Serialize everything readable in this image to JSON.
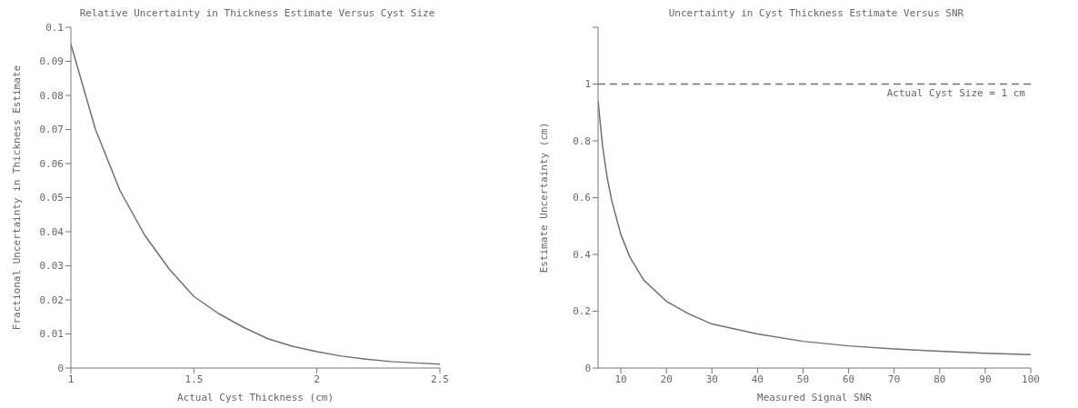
{
  "chart_data": [
    {
      "type": "line",
      "title": "Relative Uncertainty in Thickness Estimate Versus Cyst Size",
      "xlabel": "Actual Cyst Thickness (cm)",
      "ylabel": "Fractional Uncertainty in Thickness Estimate",
      "x": [
        1,
        1.1,
        1.2,
        1.3,
        1.4,
        1.5,
        1.6,
        1.7,
        1.8,
        1.9,
        2,
        2.1,
        2.2,
        2.3,
        2.4,
        2.5
      ],
      "series": [
        {
          "color": "#707070",
          "values": [
            0.095,
            0.07,
            0.052,
            0.039,
            0.029,
            0.021,
            0.016,
            0.012,
            0.0086,
            0.0064,
            0.0048,
            0.0035,
            0.0026,
            0.0019,
            0.0015,
            0.0011
          ]
        }
      ],
      "xlim": [
        1,
        2.5
      ],
      "xticks": [
        1,
        1.5,
        2,
        2.5
      ],
      "ylim": [
        0,
        0.1
      ],
      "yticks": [
        0,
        0.01,
        0.02,
        0.03,
        0.04,
        0.05,
        0.06,
        0.07,
        0.08,
        0.09,
        0.1
      ],
      "grid": false,
      "legend": false,
      "marker": "none",
      "line_style": "solid"
    },
    {
      "type": "line",
      "title": "Uncertainty in Cyst Thickness Estimate Versus SNR",
      "xlabel": "Measured Signal SNR",
      "ylabel": "Estimate Uncertainty (cm)",
      "x": [
        5,
        6,
        7,
        8,
        10,
        12,
        15,
        20,
        25,
        30,
        40,
        50,
        60,
        70,
        80,
        90,
        100
      ],
      "series": [
        {
          "color": "#707070",
          "values": [
            0.94,
            0.78,
            0.67,
            0.59,
            0.47,
            0.39,
            0.31,
            0.235,
            0.19,
            0.155,
            0.12,
            0.094,
            0.078,
            0.067,
            0.059,
            0.052,
            0.047
          ]
        }
      ],
      "xlim": [
        5,
        100
      ],
      "xticks": [
        10,
        20,
        30,
        40,
        50,
        60,
        70,
        80,
        90,
        100
      ],
      "ylim": [
        0,
        1.2
      ],
      "yticks": [
        0,
        0.2,
        0.4,
        0.6,
        0.8,
        1,
        {
          "value": 1.2,
          "label": null
        }
      ],
      "ref_lines": [
        {
          "axis": "y",
          "value": 1,
          "label": "Actual Cyst Size = 1 cm",
          "color": "#707070",
          "line_style": "dashed"
        }
      ],
      "grid": false,
      "legend": false,
      "marker": "none",
      "line_style": "solid"
    }
  ]
}
